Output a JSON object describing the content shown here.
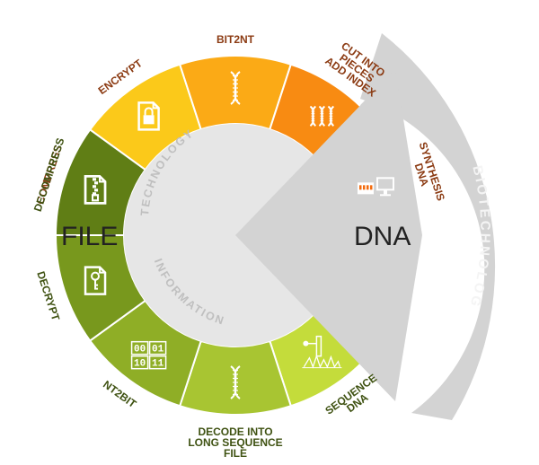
{
  "center": {
    "left_label": "FILE",
    "right_label": "DNA"
  },
  "arc_labels": {
    "technology": "TECHNOLOGY",
    "information": "INFORMATION",
    "biotechnology": "BIOTECHNOLOGY"
  },
  "segments": [
    {
      "id": "compress",
      "lines": [
        "COMPRESS"
      ],
      "color": "#F5DB25",
      "label_color": "#8B3A12",
      "icon": "zip-file-icon"
    },
    {
      "id": "encrypt",
      "lines": [
        "ENCRYPT"
      ],
      "color": "#FBC91A",
      "label_color": "#8B3A12",
      "icon": "lock-file-icon"
    },
    {
      "id": "bit2nt",
      "lines": [
        "BIT2NT"
      ],
      "color": "#FBAA16",
      "label_color": "#8B3A12",
      "icon": "dna-helix-icon"
    },
    {
      "id": "cut-into-pieces",
      "lines": [
        "CUT INTO",
        "PIECES",
        "ADD INDEX"
      ],
      "color": "#F88B12",
      "label_color": "#8B3A12",
      "icon": "dna-fragments-icon"
    },
    {
      "id": "synthesis",
      "lines": [
        "SYNTHESIS",
        "DNA"
      ],
      "color": "#F36B0D",
      "label_color": "#8B3A12",
      "icon": "synthesizer-computer-icon"
    },
    {
      "id": "sequence",
      "lines": [
        "SEQUENCE",
        "DNA"
      ],
      "color": "#C4DC3B",
      "label_color": "#3F5212",
      "icon": "sequencer-chart-icon"
    },
    {
      "id": "decode",
      "lines": [
        "DECODE INTO",
        "LONG SEQUENCE",
        "FILE"
      ],
      "color": "#A8C532",
      "label_color": "#3F5212",
      "icon": "dna-helix-icon"
    },
    {
      "id": "nt2bit",
      "lines": [
        "NT2BIT"
      ],
      "color": "#8FAE26",
      "label_color": "#3F5212",
      "icon": "binary-grid-icon"
    },
    {
      "id": "decrypt",
      "lines": [
        "DECRYPT"
      ],
      "color": "#78981D",
      "label_color": "#3F5212",
      "icon": "key-file-icon"
    },
    {
      "id": "decompress",
      "lines": [
        "DECOMPRESS"
      ],
      "color": "#607E15",
      "label_color": "#3F5212",
      "icon": "zip-file-icon"
    }
  ],
  "binary_grid": [
    "00",
    "01",
    "10",
    "11"
  ],
  "colors": {
    "inner_disc": "#E6E6E6",
    "bio_band": "#D3D3D3",
    "inner_text": "#BFBFBF"
  }
}
